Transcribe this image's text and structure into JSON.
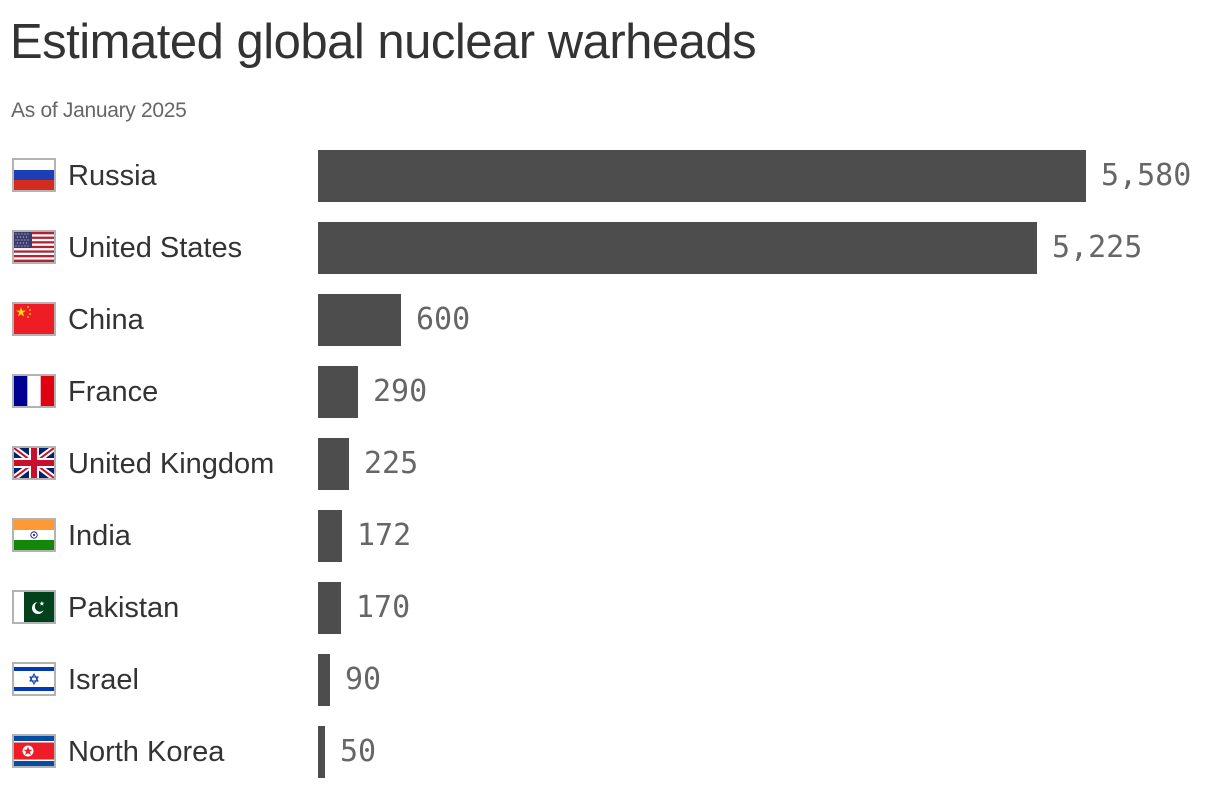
{
  "header": {
    "title": "Estimated global nuclear warheads",
    "subtitle": "As of January 2025"
  },
  "colors": {
    "bar": "#4d4d4d",
    "title": "#333333",
    "subtitle": "#666666",
    "value": "#666666",
    "flag_border": "#b3b3b3"
  },
  "rows": [
    {
      "country": "Russia",
      "value_label": "5,580",
      "flag_icon": "russia-flag-icon"
    },
    {
      "country": "United States",
      "value_label": "5,225",
      "flag_icon": "usa-flag-icon"
    },
    {
      "country": "China",
      "value_label": "600",
      "flag_icon": "china-flag-icon"
    },
    {
      "country": "France",
      "value_label": "290",
      "flag_icon": "france-flag-icon"
    },
    {
      "country": "United Kingdom",
      "value_label": "225",
      "flag_icon": "uk-flag-icon"
    },
    {
      "country": "India",
      "value_label": "172",
      "flag_icon": "india-flag-icon"
    },
    {
      "country": "Pakistan",
      "value_label": "170",
      "flag_icon": "pakistan-flag-icon"
    },
    {
      "country": "Israel",
      "value_label": "90",
      "flag_icon": "israel-flag-icon"
    },
    {
      "country": "North Korea",
      "value_label": "50",
      "flag_icon": "north-korea-flag-icon"
    }
  ],
  "chart_data": {
    "type": "bar",
    "orientation": "horizontal",
    "title": "Estimated global nuclear warheads",
    "subtitle": "As of January 2025",
    "categories": [
      "Russia",
      "United States",
      "China",
      "France",
      "United Kingdom",
      "India",
      "Pakistan",
      "Israel",
      "North Korea"
    ],
    "values": [
      5580,
      5225,
      600,
      290,
      225,
      172,
      170,
      90,
      50
    ],
    "xlabel": "",
    "ylabel": "",
    "xlim": [
      0,
      5580
    ],
    "grid": false,
    "legend": "none",
    "data_labels": true
  }
}
